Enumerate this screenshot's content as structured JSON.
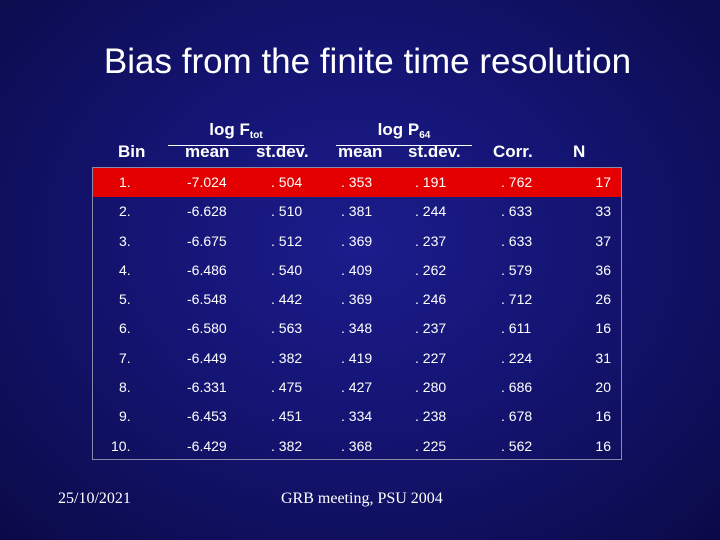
{
  "slide": {
    "title": "Bias from the finite time resolution",
    "footer_date": "25/10/2021",
    "footer_center": "GRB meeting, PSU 2004"
  },
  "colors": {
    "background": "#141472",
    "highlight_row": "#e40000",
    "text": "#ffffff"
  },
  "table": {
    "header": {
      "bin": "Bin",
      "group1_label": "log F",
      "group1_sub": "tot",
      "group2_label": "log P",
      "group2_sub": "64",
      "mean1": "mean",
      "stdev1": "st.dev.",
      "mean2": "mean",
      "stdev2": "st.dev.",
      "corr": "Corr.",
      "n": "N"
    },
    "rows": [
      {
        "bin": "1.",
        "mean_f": "-7.024",
        "sd_f": ". 504",
        "mean_p": ". 353",
        "sd_p": ". 191",
        "corr": ". 762",
        "n": "17"
      },
      {
        "bin": "2.",
        "mean_f": "-6.628",
        "sd_f": ". 510",
        "mean_p": ". 381",
        "sd_p": ". 244",
        "corr": ". 633",
        "n": "33"
      },
      {
        "bin": "3.",
        "mean_f": "-6.675",
        "sd_f": ". 512",
        "mean_p": ". 369",
        "sd_p": ". 237",
        "corr": ". 633",
        "n": "37"
      },
      {
        "bin": "4.",
        "mean_f": "-6.486",
        "sd_f": ". 540",
        "mean_p": ". 409",
        "sd_p": ". 262",
        "corr": ". 579",
        "n": "36"
      },
      {
        "bin": "5.",
        "mean_f": "-6.548",
        "sd_f": ". 442",
        "mean_p": ". 369",
        "sd_p": ". 246",
        "corr": ". 712",
        "n": "26"
      },
      {
        "bin": "6.",
        "mean_f": "-6.580",
        "sd_f": ". 563",
        "mean_p": ". 348",
        "sd_p": ". 237",
        "corr": ". 611",
        "n": "16"
      },
      {
        "bin": "7.",
        "mean_f": "-6.449",
        "sd_f": ". 382",
        "mean_p": ". 419",
        "sd_p": ". 227",
        "corr": ". 224",
        "n": "31"
      },
      {
        "bin": "8.",
        "mean_f": "-6.331",
        "sd_f": ". 475",
        "mean_p": ". 427",
        "sd_p": ". 280",
        "corr": ". 686",
        "n": "20"
      },
      {
        "bin": "9.",
        "mean_f": "-6.453",
        "sd_f": ". 451",
        "mean_p": ". 334",
        "sd_p": ". 238",
        "corr": ". 678",
        "n": "16"
      },
      {
        "bin": "10.",
        "mean_f": "-6.429",
        "sd_f": ". 382",
        "mean_p": ". 368",
        "sd_p": ". 225",
        "corr": ". 562",
        "n": "16"
      }
    ]
  }
}
